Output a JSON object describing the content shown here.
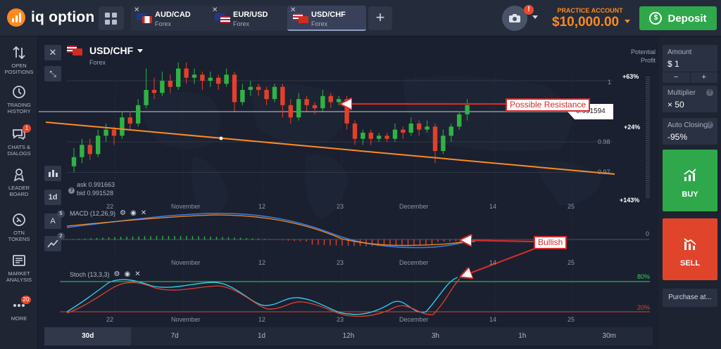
{
  "brand": {
    "name": "iq option"
  },
  "tabs": [
    {
      "name": "AUD/CAD",
      "type": "Forex",
      "flag_a": [
        "#1a3a8c",
        "#1a3a8c"
      ],
      "flag_b": [
        "#d52b1e",
        "#ffffff"
      ]
    },
    {
      "name": "EUR/USD",
      "type": "Forex",
      "flag_a": [
        "#1e3a8f",
        "#1e3a8f"
      ],
      "flag_b": [
        "#b22234",
        "#ffffff"
      ]
    },
    {
      "name": "USD/CHF",
      "type": "Forex",
      "flag_a": [
        "#b22234",
        "#ffffff"
      ],
      "flag_b": [
        "#d52b1e",
        "#ffffff"
      ],
      "active": true
    }
  ],
  "tab_close": "✕",
  "add_tab": "+",
  "camera_alert": "!",
  "account": {
    "label": "PRACTICE ACCOUNT",
    "balance": "$10,000.00"
  },
  "deposit": {
    "label": "Deposit",
    "icon": "$"
  },
  "sidebar": [
    {
      "label1": "OPEN",
      "label2": "POSITIONS",
      "icon": "swap-arrows-icon"
    },
    {
      "label1": "TRADING",
      "label2": "HISTORY",
      "icon": "history-icon"
    },
    {
      "label1": "CHATS &",
      "label2": "DIALOGS",
      "icon": "chat-icon",
      "badge": "1"
    },
    {
      "label1": "LEADER",
      "label2": "BOARD",
      "icon": "leaderboard-icon"
    },
    {
      "label1": "OTN",
      "label2": "TOKENS",
      "icon": "token-icon"
    },
    {
      "label1": "MARKET",
      "label2": "ANALYSIS",
      "icon": "news-icon"
    },
    {
      "label1": "MORE",
      "label2": "",
      "icon": "more-icon",
      "badge": "20"
    }
  ],
  "chart": {
    "title": "USD/CHF",
    "subtitle": "Forex",
    "potential_profit_line1": "Potential",
    "potential_profit_line2": "Profit",
    "pct_top": "+63%",
    "pct_mid": "+24%",
    "pct_bottom": "+143%",
    "current_price": "0.991594",
    "ask": "ask 0.991663",
    "bid": "bid 0.991528",
    "price_levels": [
      "1",
      "0.98",
      "0.97"
    ],
    "x_labels": [
      "22",
      "November",
      "12",
      "23",
      "December",
      "14",
      "25"
    ],
    "macd_label": "MACD (12,26,9)",
    "macd_zero": "0",
    "stoch_label": "Stoch (13,3,3)",
    "stoch_upper": "80%",
    "stoch_lower": "20%",
    "period_button": "1d",
    "indicator_count_macd": "5",
    "indicator_count_stoch": "2",
    "annotation_resistance": "Possible Resistance",
    "annotation_bullish": "Bullish",
    "close_icon": "✕",
    "collapse_icon": "⤡"
  },
  "chart_data": {
    "type": "candlestick",
    "price_levels_shown": [
      1.0,
      0.98,
      0.97
    ],
    "candles": [
      [
        0.972,
        0.975,
        0.97,
        0.978
      ],
      [
        0.975,
        0.979,
        0.973,
        0.981
      ],
      [
        0.979,
        0.976,
        0.974,
        0.981
      ],
      [
        0.976,
        0.982,
        0.975,
        0.984
      ],
      [
        0.982,
        0.984,
        0.98,
        0.986
      ],
      [
        0.984,
        0.982,
        0.979,
        0.985
      ],
      [
        0.982,
        0.988,
        0.981,
        0.99
      ],
      [
        0.988,
        0.986,
        0.984,
        0.99
      ],
      [
        0.986,
        0.992,
        0.985,
        0.994
      ],
      [
        0.992,
        0.997,
        0.991,
        1.004
      ],
      [
        0.997,
        0.996,
        0.994,
        1.001
      ],
      [
        0.996,
        1.0,
        0.995,
        1.003
      ],
      [
        1.0,
        0.998,
        0.996,
        1.002
      ],
      [
        0.998,
        1.004,
        0.997,
        1.006
      ],
      [
        1.004,
        1.001,
        0.999,
        1.006
      ],
      [
        1.001,
        1.002,
        0.999,
        1.004
      ],
      [
        1.002,
        1.0,
        0.997,
        1.003
      ],
      [
        1.0,
        1.001,
        0.998,
        1.003
      ],
      [
        1.001,
        0.999,
        0.997,
        1.002
      ],
      [
        0.999,
        1.002,
        0.998,
        1.004
      ],
      [
        1.002,
        0.993,
        0.99,
        1.003
      ],
      [
        0.993,
        0.997,
        0.992,
        0.999
      ],
      [
        0.997,
        0.998,
        0.995,
        1.0
      ],
      [
        0.998,
        0.997,
        0.995,
        0.999
      ],
      [
        0.997,
        0.994,
        0.992,
        0.998
      ],
      [
        0.994,
        0.998,
        0.993,
        0.999
      ],
      [
        0.998,
        0.992,
        0.988,
        0.999
      ],
      [
        0.992,
        0.988,
        0.986,
        0.994
      ],
      [
        0.988,
        0.994,
        0.987,
        0.996
      ],
      [
        0.994,
        0.992,
        0.99,
        0.995
      ],
      [
        0.992,
        0.991,
        0.989,
        0.993
      ],
      [
        0.991,
        0.995,
        0.99,
        0.997
      ],
      [
        0.995,
        0.993,
        0.991,
        0.996
      ],
      [
        0.993,
        0.994,
        0.992,
        0.995
      ],
      [
        0.994,
        0.986,
        0.984,
        0.995
      ],
      [
        0.986,
        0.981,
        0.979,
        0.987
      ],
      [
        0.981,
        0.983,
        0.979,
        0.984
      ],
      [
        0.983,
        0.981,
        0.979,
        0.984
      ],
      [
        0.981,
        0.982,
        0.98,
        0.983
      ],
      [
        0.982,
        0.981,
        0.98,
        0.983
      ],
      [
        0.981,
        0.984,
        0.98,
        0.986
      ],
      [
        0.984,
        0.983,
        0.981,
        0.985
      ],
      [
        0.983,
        0.986,
        0.982,
        0.988
      ],
      [
        0.986,
        0.984,
        0.982,
        0.987
      ],
      [
        0.984,
        0.985,
        0.983,
        0.987
      ],
      [
        0.985,
        0.977,
        0.973,
        0.986
      ],
      [
        0.977,
        0.982,
        0.976,
        0.984
      ],
      [
        0.982,
        0.985,
        0.98,
        0.986
      ],
      [
        0.985,
        0.989,
        0.984,
        0.99
      ],
      [
        0.989,
        0.992,
        0.987,
        0.994
      ]
    ]
  },
  "timeframes": [
    "30d",
    "7d",
    "1d",
    "12h",
    "3h",
    "1h",
    "30m"
  ],
  "active_timeframe": "30d",
  "right_panel": {
    "amount_label": "Amount",
    "amount_value": "$ 1",
    "minus": "−",
    "plus": "+",
    "multiplier_label": "Multiplier",
    "multiplier_value": "× 50",
    "auto_closing_label": "Auto Closing",
    "auto_closing_value": "-95%",
    "info": "?",
    "buy": "BUY",
    "sell": "SELL",
    "purchase": "Purchase at..."
  },
  "colors": {
    "accent": "#ff8a1f",
    "buy": "#2ea84a",
    "sell": "#e0452c",
    "bull_candle": "#2fb344",
    "bear_candle": "#e2402a",
    "trend": "#ff8a1f",
    "annotation": "#d22b2b"
  }
}
